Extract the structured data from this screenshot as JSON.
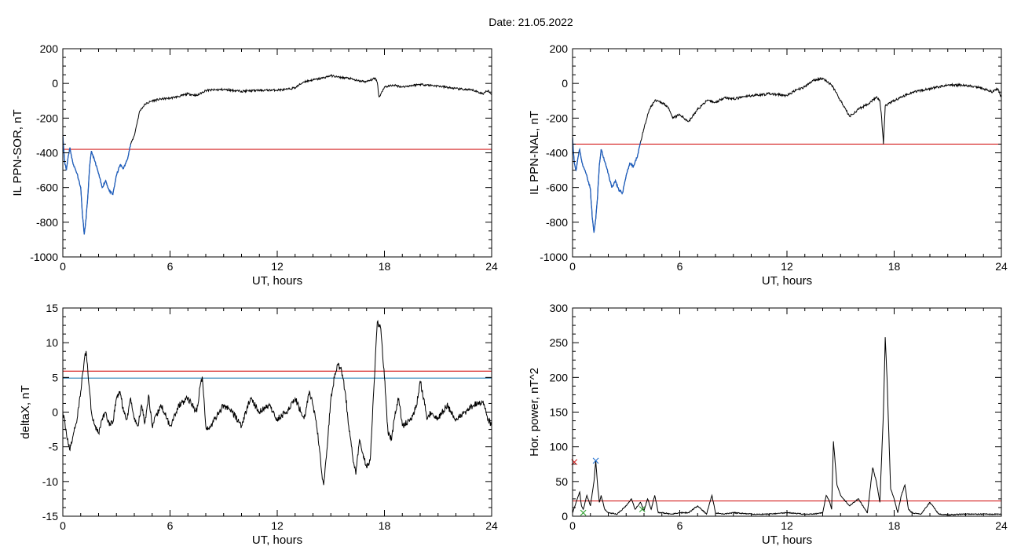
{
  "page": {
    "title": "Date:  21.05.2022"
  },
  "colors": {
    "axis": "#000000",
    "trace": "#000000",
    "highlight": "#1f5fbf",
    "threshold_red": "#d42020",
    "threshold_blue": "#3d8fc0",
    "marker_red": "#d42020",
    "marker_blue": "#1f6fcf",
    "marker_green": "#2ea02e"
  },
  "chart_data": [
    {
      "id": "sor",
      "type": "line",
      "xlabel": "UT, hours",
      "ylabel": "IL PPN-SOR, nT",
      "xlim": [
        0,
        24
      ],
      "ylim": [
        -1000,
        200
      ],
      "xticks": [
        0,
        6,
        12,
        18,
        24
      ],
      "yticks": [
        -1000,
        -800,
        -600,
        -400,
        -200,
        0,
        200
      ],
      "xtick_labels": [
        "0",
        "6",
        "12",
        "18",
        "24"
      ],
      "ytick_labels": [
        "-1000",
        "-800",
        "-600",
        "-400",
        "-200",
        "0",
        "200"
      ],
      "threshold": {
        "color": "red",
        "value": -380
      },
      "highlight_range": [
        0,
        3.8
      ],
      "series": [
        {
          "x": [
            0,
            0.1,
            0.2,
            0.3,
            0.4,
            0.5,
            0.6,
            0.8,
            1.0,
            1.1,
            1.2,
            1.3,
            1.4,
            1.5,
            1.6,
            1.8,
            2.0,
            2.2,
            2.4,
            2.6,
            2.8,
            3.0,
            3.2,
            3.4,
            3.6,
            3.8,
            4.0,
            4.3,
            4.6,
            5.0,
            5.5,
            6.0,
            6.5,
            7.0,
            7.5,
            8.0,
            9.0,
            10.0,
            11.0,
            12.0,
            12.5,
            13.0,
            13.5,
            14.0,
            14.5,
            15.0,
            15.5,
            16.0,
            16.5,
            17.0,
            17.5,
            17.6,
            17.7,
            17.8,
            18.0,
            18.5,
            19.0,
            20.0,
            21.0,
            22.0,
            23.0,
            23.5,
            23.8,
            24.0
          ],
          "y": [
            -300,
            -450,
            -500,
            -420,
            -370,
            -430,
            -470,
            -520,
            -600,
            -760,
            -870,
            -780,
            -650,
            -480,
            -390,
            -450,
            -520,
            -600,
            -560,
            -620,
            -640,
            -530,
            -470,
            -490,
            -440,
            -350,
            -300,
            -160,
            -120,
            -100,
            -90,
            -85,
            -75,
            -60,
            -70,
            -40,
            -35,
            -45,
            -40,
            -38,
            -35,
            -25,
            10,
            20,
            30,
            45,
            35,
            30,
            15,
            10,
            30,
            5,
            -80,
            -60,
            -20,
            -10,
            -20,
            -5,
            -15,
            -30,
            -40,
            -60,
            -40,
            -60
          ]
        }
      ]
    },
    {
      "id": "nal",
      "type": "line",
      "xlabel": "UT, hours",
      "ylabel": "IL PPN-NAL, nT",
      "xlim": [
        0,
        24
      ],
      "ylim": [
        -1000,
        200
      ],
      "xticks": [
        0,
        6,
        12,
        18,
        24
      ],
      "yticks": [
        -1000,
        -800,
        -600,
        -400,
        -200,
        0,
        200
      ],
      "xtick_labels": [
        "0",
        "6",
        "12",
        "18",
        "24"
      ],
      "ytick_labels": [
        "-1000",
        "-800",
        "-600",
        "-400",
        "-200",
        "0",
        "200"
      ],
      "threshold": {
        "color": "red",
        "value": -350
      },
      "highlight_range": [
        0,
        3.8
      ],
      "series": [
        {
          "x": [
            0,
            0.1,
            0.2,
            0.3,
            0.4,
            0.5,
            0.6,
            0.8,
            1.0,
            1.1,
            1.2,
            1.3,
            1.4,
            1.5,
            1.6,
            1.8,
            2.0,
            2.2,
            2.4,
            2.6,
            2.8,
            3.0,
            3.2,
            3.4,
            3.6,
            3.8,
            4.0,
            4.3,
            4.6,
            5.0,
            5.3,
            5.6,
            6.0,
            6.5,
            7.0,
            7.5,
            8.0,
            8.5,
            9.0,
            10.0,
            11.0,
            12.0,
            12.5,
            13.0,
            13.5,
            14.0,
            14.5,
            14.8,
            15.0,
            15.5,
            16.0,
            16.5,
            17.0,
            17.2,
            17.3,
            17.4,
            17.5,
            18.0,
            19.0,
            20.0,
            21.0,
            22.0,
            23.0,
            23.5,
            23.8,
            24.0
          ],
          "y": [
            -310,
            -460,
            -500,
            -430,
            -380,
            -440,
            -480,
            -530,
            -610,
            -770,
            -860,
            -780,
            -650,
            -470,
            -380,
            -450,
            -520,
            -600,
            -560,
            -620,
            -630,
            -530,
            -460,
            -480,
            -430,
            -340,
            -260,
            -150,
            -100,
            -110,
            -130,
            -200,
            -180,
            -220,
            -150,
            -100,
            -110,
            -80,
            -90,
            -70,
            -60,
            -70,
            -40,
            -20,
            20,
            30,
            -10,
            -60,
            -100,
            -190,
            -150,
            -120,
            -80,
            -100,
            -200,
            -350,
            -130,
            -100,
            -50,
            -30,
            -10,
            -10,
            -30,
            -50,
            -30,
            -80
          ]
        }
      ]
    },
    {
      "id": "deltax",
      "type": "line",
      "xlabel": "UT, hours",
      "ylabel": "deltaX, nT",
      "xlim": [
        0,
        24
      ],
      "ylim": [
        -15,
        15
      ],
      "xticks": [
        0,
        6,
        12,
        18,
        24
      ],
      "yticks": [
        -15,
        -10,
        -5,
        0,
        5,
        10,
        15
      ],
      "xtick_labels": [
        "0",
        "6",
        "12",
        "18",
        "24"
      ],
      "ytick_labels": [
        "-15",
        "-10",
        "-5",
        "0",
        "5",
        "10",
        "15"
      ],
      "thresholds": [
        {
          "color": "red",
          "value": 5.9
        },
        {
          "color": "blue",
          "value": 4.9
        }
      ],
      "series": [
        {
          "x": [
            0,
            0.2,
            0.4,
            0.6,
            0.8,
            1.0,
            1.2,
            1.3,
            1.4,
            1.5,
            1.6,
            1.8,
            2.0,
            2.2,
            2.4,
            2.6,
            2.8,
            3.0,
            3.2,
            3.4,
            3.6,
            3.8,
            4.0,
            4.2,
            4.4,
            4.6,
            4.8,
            5.0,
            5.5,
            6.0,
            6.5,
            7.0,
            7.5,
            7.7,
            7.8,
            7.9,
            8.0,
            8.2,
            8.5,
            9.0,
            9.5,
            10.0,
            10.5,
            11.0,
            11.5,
            12.0,
            12.5,
            13.0,
            13.5,
            13.8,
            14.0,
            14.2,
            14.4,
            14.5,
            14.6,
            14.8,
            15.0,
            15.2,
            15.4,
            15.6,
            15.8,
            16.0,
            16.2,
            16.4,
            16.6,
            16.8,
            17.0,
            17.2,
            17.4,
            17.6,
            17.8,
            18.0,
            18.2,
            18.4,
            18.6,
            18.8,
            19.0,
            19.5,
            19.8,
            20.0,
            20.2,
            20.4,
            20.6,
            21.0,
            21.5,
            22.0,
            22.5,
            23.0,
            23.5,
            23.8,
            24.0
          ],
          "y": [
            0,
            -3,
            -5.5,
            -3,
            -1,
            3,
            7.5,
            8.8,
            6,
            3,
            0,
            -2,
            -3,
            -1,
            0,
            -2,
            -1.5,
            2,
            3,
            0,
            -1,
            2,
            -1,
            -2,
            1,
            -1.5,
            2.5,
            -2,
            1,
            -2,
            1,
            2,
            0,
            4,
            5.1,
            2,
            -2,
            -2.5,
            -1,
            1,
            0,
            -2,
            2,
            0,
            1,
            -1,
            0,
            2,
            -1,
            3,
            1,
            -2,
            -6,
            -9,
            -10.5,
            -5,
            2,
            5,
            6.8,
            6,
            3,
            -2,
            -6,
            -9,
            -4,
            -6,
            -8,
            -7,
            3,
            13,
            12,
            5,
            -3,
            -4,
            0,
            2,
            -2,
            -1,
            1,
            4.5,
            2,
            -1,
            0,
            -1,
            1,
            -1,
            0,
            1,
            1.5,
            -1,
            -2
          ]
        }
      ]
    },
    {
      "id": "power",
      "type": "line",
      "xlabel": "UT, hours",
      "ylabel": "Hor. power, nT^2",
      "xlim": [
        0,
        24
      ],
      "ylim": [
        0,
        300
      ],
      "xticks": [
        0,
        6,
        12,
        18,
        24
      ],
      "yticks": [
        0,
        50,
        100,
        150,
        200,
        250,
        300
      ],
      "xtick_labels": [
        "0",
        "6",
        "12",
        "18",
        "24"
      ],
      "ytick_labels": [
        "0",
        "50",
        "100",
        "150",
        "200",
        "250",
        "300"
      ],
      "threshold": {
        "color": "red",
        "value": 22
      },
      "markers": [
        {
          "color": "red",
          "x": 0.1,
          "y": 78
        },
        {
          "color": "blue",
          "x": 1.3,
          "y": 80
        },
        {
          "color": "green",
          "x": 0.6,
          "y": 5
        },
        {
          "color": "green",
          "x": 3.9,
          "y": 10
        }
      ],
      "series": [
        {
          "x": [
            0,
            0.2,
            0.4,
            0.5,
            0.6,
            0.8,
            1.0,
            1.2,
            1.3,
            1.4,
            1.5,
            1.6,
            1.8,
            2.0,
            2.5,
            3.0,
            3.3,
            3.5,
            3.8,
            4.0,
            4.2,
            4.4,
            4.6,
            4.8,
            5.0,
            5.5,
            6.0,
            6.5,
            7.0,
            7.5,
            7.8,
            8.0,
            8.5,
            9.0,
            10.0,
            11.0,
            12.0,
            13.0,
            13.5,
            14.0,
            14.2,
            14.4,
            14.5,
            14.6,
            14.8,
            15.0,
            15.5,
            16.0,
            16.5,
            16.8,
            17.0,
            17.2,
            17.4,
            17.5,
            17.6,
            17.8,
            18.0,
            18.2,
            18.4,
            18.6,
            18.8,
            19.0,
            19.5,
            20.0,
            20.5,
            21.0,
            22.0,
            23.0,
            24.0
          ],
          "y": [
            5,
            20,
            35,
            15,
            10,
            30,
            15,
            50,
            80,
            45,
            20,
            30,
            10,
            5,
            3,
            15,
            25,
            10,
            20,
            8,
            25,
            10,
            30,
            5,
            5,
            3,
            5,
            5,
            15,
            3,
            30,
            5,
            3,
            5,
            3,
            3,
            5,
            3,
            3,
            5,
            30,
            20,
            10,
            108,
            45,
            30,
            15,
            25,
            5,
            70,
            50,
            20,
            150,
            258,
            200,
            40,
            25,
            5,
            30,
            45,
            10,
            5,
            3,
            20,
            3,
            2,
            3,
            3,
            3
          ]
        }
      ]
    }
  ]
}
